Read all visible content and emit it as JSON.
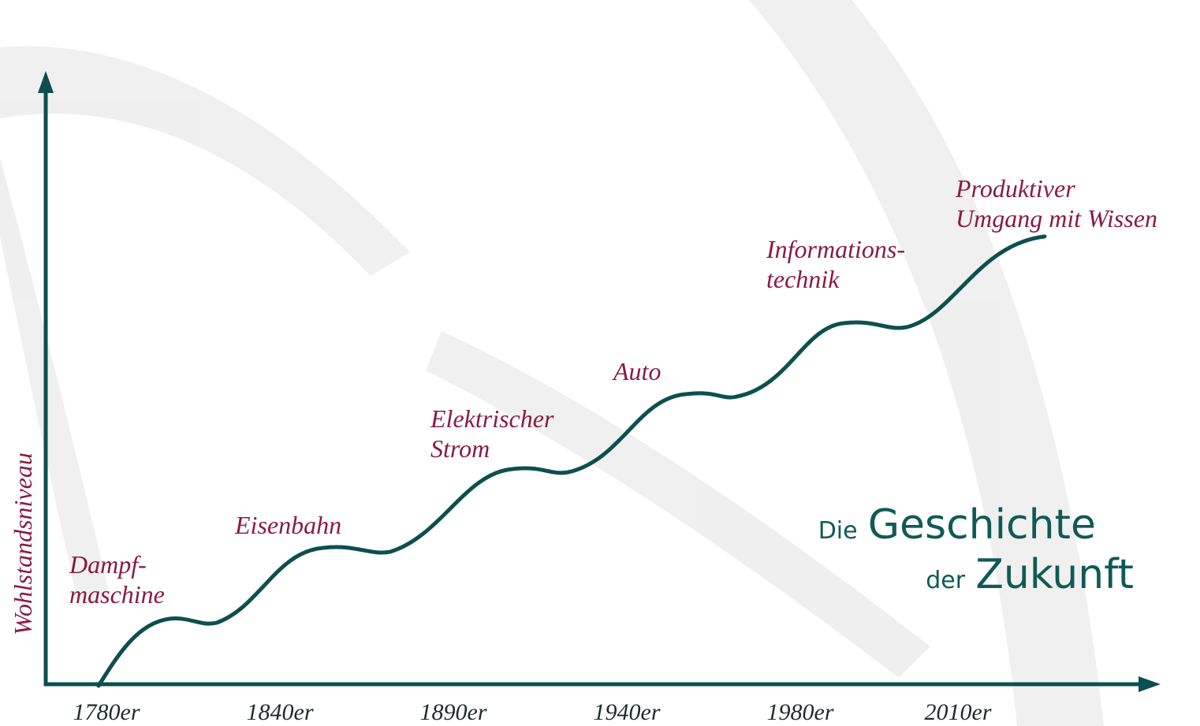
{
  "axis": {
    "y_label": "Wohlstandsniveau",
    "x_labels": [
      "1780er",
      "1840er",
      "1890er",
      "1940er",
      "1980er",
      "2010er"
    ]
  },
  "waves": [
    {
      "label_lines": [
        "Dampf-",
        "maschine"
      ]
    },
    {
      "label_lines": [
        "Eisenbahn"
      ]
    },
    {
      "label_lines": [
        "Elektrischer",
        "Strom"
      ]
    },
    {
      "label_lines": [
        "Auto"
      ]
    },
    {
      "label_lines": [
        "Informations-",
        "technik"
      ]
    },
    {
      "label_lines": [
        "Produktiver",
        "Umgang mit Wissen"
      ]
    }
  ],
  "title": {
    "line1_small": "Die",
    "line1_large": "Geschichte",
    "line2_small": "der",
    "line2_large": "Zukunft"
  }
}
